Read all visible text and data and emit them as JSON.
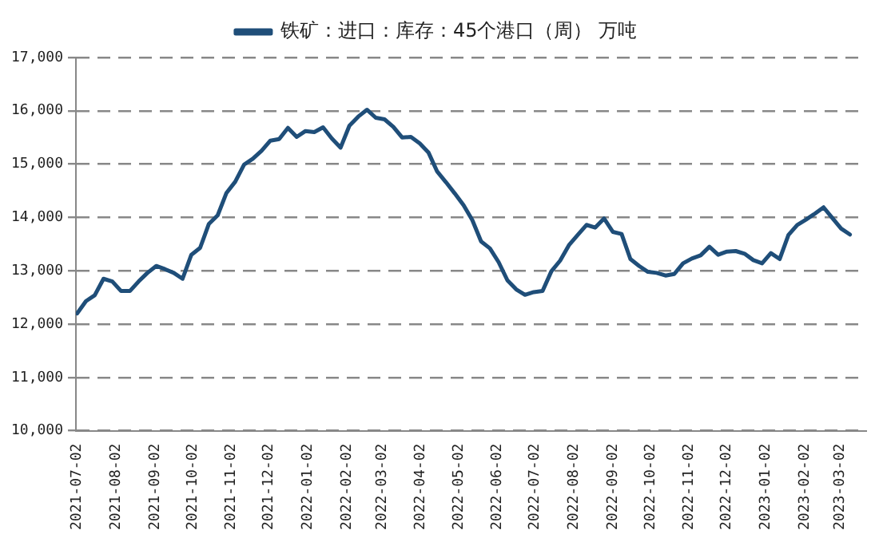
{
  "chart_data": {
    "type": "line",
    "x": [
      "2021-07-02",
      "2021-07-09",
      "2021-07-16",
      "2021-07-23",
      "2021-07-30",
      "2021-08-06",
      "2021-08-13",
      "2021-08-20",
      "2021-08-27",
      "2021-09-03",
      "2021-09-10",
      "2021-09-17",
      "2021-09-24",
      "2021-10-01",
      "2021-10-08",
      "2021-10-15",
      "2021-10-22",
      "2021-10-29",
      "2021-11-05",
      "2021-11-12",
      "2021-11-19",
      "2021-11-26",
      "2021-12-03",
      "2021-12-10",
      "2021-12-17",
      "2021-12-24",
      "2021-12-31",
      "2022-01-07",
      "2022-01-14",
      "2022-01-21",
      "2022-01-28",
      "2022-02-04",
      "2022-02-11",
      "2022-02-18",
      "2022-02-25",
      "2022-03-04",
      "2022-03-11",
      "2022-03-18",
      "2022-03-25",
      "2022-04-01",
      "2022-04-08",
      "2022-04-15",
      "2022-04-22",
      "2022-04-29",
      "2022-05-06",
      "2022-05-13",
      "2022-05-20",
      "2022-05-27",
      "2022-06-03",
      "2022-06-10",
      "2022-06-17",
      "2022-06-24",
      "2022-07-01",
      "2022-07-08",
      "2022-07-15",
      "2022-07-22",
      "2022-07-29",
      "2022-08-05",
      "2022-08-12",
      "2022-08-19",
      "2022-08-26",
      "2022-09-02",
      "2022-09-09",
      "2022-09-16",
      "2022-09-23",
      "2022-09-30",
      "2022-10-07",
      "2022-10-14",
      "2022-10-21",
      "2022-10-28",
      "2022-11-04",
      "2022-11-11",
      "2022-11-18",
      "2022-11-25",
      "2022-12-02",
      "2022-12-09",
      "2022-12-16",
      "2022-12-23",
      "2022-12-30",
      "2023-01-06",
      "2023-01-13",
      "2023-01-20",
      "2023-01-27",
      "2023-02-03",
      "2023-02-10",
      "2023-02-17",
      "2023-02-24",
      "2023-03-03",
      "2023-03-10"
    ],
    "series": [
      {
        "name": "铁矿：进口：库存：45个港口（周） 万吨",
        "color": "#1f4e79",
        "values": [
          12200,
          12430,
          12540,
          12850,
          12800,
          12620,
          12620,
          12800,
          12960,
          13090,
          13030,
          12960,
          12850,
          13300,
          13430,
          13880,
          14040,
          14460,
          14670,
          14990,
          15100,
          15250,
          15440,
          15470,
          15680,
          15510,
          15620,
          15600,
          15690,
          15480,
          15310,
          15720,
          15890,
          16020,
          15870,
          15840,
          15700,
          15500,
          15510,
          15390,
          15220,
          14860,
          14660,
          14450,
          14230,
          13950,
          13550,
          13420,
          13160,
          12820,
          12650,
          12550,
          12600,
          12620,
          12990,
          13190,
          13480,
          13670,
          13860,
          13810,
          13980,
          13730,
          13690,
          13220,
          13090,
          12980,
          12960,
          12910,
          12940,
          13140,
          13230,
          13290,
          13450,
          13300,
          13360,
          13370,
          13320,
          13200,
          13140,
          13330,
          13220,
          13670,
          13860,
          13960,
          14070,
          14190,
          13990,
          13790,
          13680
        ]
      }
    ],
    "xlim": [
      "2021-07-01",
      "2023-03-23"
    ],
    "xticks": [
      "2021-07-02",
      "2021-08-02",
      "2021-09-02",
      "2021-10-02",
      "2021-11-02",
      "2021-12-02",
      "2022-01-02",
      "2022-02-02",
      "2022-03-02",
      "2022-04-02",
      "2022-05-02",
      "2022-06-02",
      "2022-07-02",
      "2022-08-02",
      "2022-09-02",
      "2022-10-02",
      "2022-11-02",
      "2022-12-02",
      "2023-01-02",
      "2023-02-02",
      "2023-03-02"
    ],
    "ylim": [
      10000,
      17000
    ],
    "yticks": [
      {
        "value": 10000,
        "label": "10,000"
      },
      {
        "value": 11000,
        "label": "11,000"
      },
      {
        "value": 12000,
        "label": "12,000"
      },
      {
        "value": 13000,
        "label": "13,000"
      },
      {
        "value": 14000,
        "label": "14,000"
      },
      {
        "value": 15000,
        "label": "15,000"
      },
      {
        "value": 16000,
        "label": "16,000"
      },
      {
        "value": 17000,
        "label": "17,000"
      }
    ],
    "grid": "y",
    "legend": "top",
    "marker": "none",
    "line_style": "solid"
  }
}
